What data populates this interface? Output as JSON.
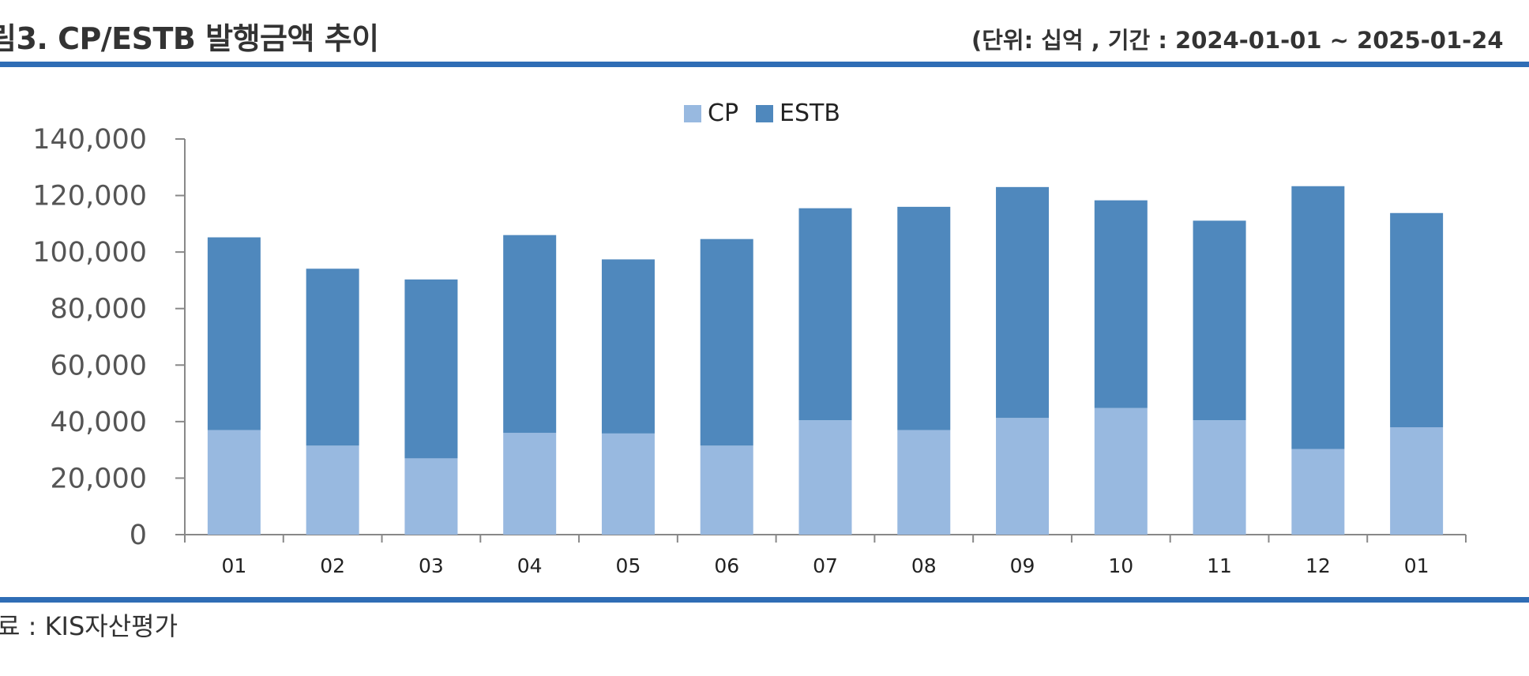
{
  "header": {
    "title": "림3. CP/ESTB 발행금액 추이",
    "unit": "(단위: 십억 , 기간 : 2024-01-01 ~ 2025-01-24"
  },
  "footer": {
    "source": "료 : KIS자산평가"
  },
  "colors": {
    "rule": "#2f6db5",
    "cp": "#98b9e0",
    "estb": "#4f88bd"
  },
  "chart_data": {
    "type": "bar",
    "stacked": true,
    "categories": [
      "01",
      "02",
      "03",
      "04",
      "05",
      "06",
      "07",
      "08",
      "09",
      "10",
      "11",
      "12",
      "01"
    ],
    "series": [
      {
        "name": "CP",
        "values": [
          37000,
          31500,
          27000,
          36000,
          35800,
          31500,
          40500,
          37000,
          41300,
          44800,
          40500,
          30300,
          38000
        ]
      },
      {
        "name": "ESTB",
        "values": [
          68200,
          62600,
          63300,
          70000,
          61600,
          73100,
          75000,
          79000,
          81700,
          73500,
          70600,
          93000,
          75800
        ]
      }
    ],
    "ylim": [
      0,
      140000
    ],
    "yticks": [
      "0",
      "20,000",
      "40,000",
      "60,000",
      "80,000",
      "100,000",
      "120,000",
      "140,000"
    ],
    "legend": "top-center",
    "grid": false
  }
}
